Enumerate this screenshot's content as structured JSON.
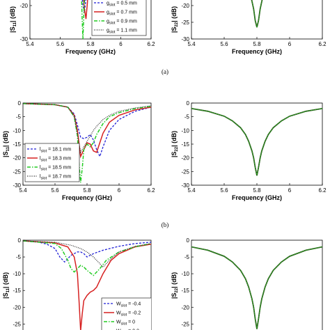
{
  "colors": {
    "blue": "#1f1fd6",
    "red": "#d62020",
    "green": "#22cc22",
    "black": "#222222",
    "olive": "#2f5a1e"
  },
  "panel_labels": [
    "(a)",
    "(b)"
  ],
  "chart_data": [
    {
      "id": "a-left",
      "type": "line",
      "xlabel": "Frequency (GHz)",
      "ylabel": "|S11| (dB)",
      "xlim": [
        5.4,
        6.2
      ],
      "ylim": [
        -30,
        -10
      ],
      "xticks": [
        "5.4",
        "5.6",
        "5.8",
        "6",
        "6.2"
      ],
      "yticks": [
        "-20",
        "-30"
      ],
      "legend": [
        "g_slot = 0.5 mm",
        "g_slot = 0.7 mm",
        "g_slot = 0.9 mm",
        "g_slot = 1.1 mm"
      ],
      "series": [
        {
          "name": "g_slot = 0.5 mm",
          "x": [
            5.72,
            5.735,
            5.75,
            5.76,
            5.77,
            5.78
          ],
          "y": [
            -10,
            -14,
            -20,
            -22,
            -18,
            -10
          ]
        },
        {
          "name": "g_slot = 0.7 mm",
          "x": [
            5.73,
            5.745,
            5.76,
            5.77,
            5.78,
            5.79
          ],
          "y": [
            -10,
            -14,
            -21,
            -24,
            -19,
            -10
          ]
        },
        {
          "name": "g_slot = 0.9 mm",
          "x": [
            5.735,
            5.74,
            5.745,
            5.75,
            5.755,
            5.76,
            5.765
          ],
          "y": [
            -10,
            -16,
            -24,
            -30,
            -24,
            -16,
            -10
          ]
        },
        {
          "name": "g_slot = 1.1 mm",
          "x": [
            5.74,
            5.75,
            5.76,
            5.77,
            5.78
          ],
          "y": [
            -10,
            -15,
            -19,
            -16,
            -10
          ]
        }
      ]
    },
    {
      "id": "a-right",
      "type": "line",
      "xlabel": "Frequency (GHz)",
      "ylabel": "|S22| (dB)",
      "xlim": [
        5.4,
        6.2
      ],
      "ylim": [
        -30,
        -10
      ],
      "xticks": [
        "5.4",
        "5.6",
        "5.8",
        "6",
        "6.2"
      ],
      "yticks": [
        "-20",
        "-25",
        "-30"
      ],
      "series": [
        {
          "name": "all",
          "x": [
            5.7,
            5.72,
            5.74,
            5.76,
            5.78,
            5.79,
            5.8,
            5.81,
            5.82,
            5.84,
            5.86,
            5.88,
            5.9
          ],
          "y": [
            -10,
            -11.5,
            -13.5,
            -16.5,
            -21,
            -24.5,
            -26.5,
            -24.5,
            -21,
            -16.5,
            -13.5,
            -11.5,
            -10
          ]
        }
      ]
    },
    {
      "id": "b-left",
      "type": "line",
      "xlabel": "Frequency (GHz)",
      "ylabel": "|S11| (dB)",
      "xlim": [
        5.4,
        6.2
      ],
      "ylim": [
        -30,
        0
      ],
      "xticks": [
        "5.4",
        "5.6",
        "5.8",
        "6",
        "6.2"
      ],
      "yticks": [
        "0",
        "-5",
        "-10",
        "-15",
        "-20",
        "-25",
        "-30"
      ],
      "legend": [
        "l_slot = 18.1 mm",
        "l_slot = 18.3 mm",
        "l_slot = 18.5 mm",
        "l_slot = 18.7 mm"
      ],
      "series": [
        {
          "name": "l_slot = 18.1 mm",
          "x": [
            5.4,
            5.6,
            5.68,
            5.72,
            5.74,
            5.76,
            5.78,
            5.8,
            5.82,
            5.84,
            5.86,
            5.88,
            5.9,
            5.94,
            6.0,
            6.1,
            6.2
          ],
          "y": [
            -0.2,
            -0.6,
            -1.5,
            -4,
            -8,
            -12.5,
            -13,
            -12.5,
            -11.5,
            -13.5,
            -17,
            -19.5,
            -16,
            -10,
            -6,
            -3,
            -1.5
          ]
        },
        {
          "name": "l_slot = 18.3 mm",
          "x": [
            5.4,
            5.6,
            5.68,
            5.72,
            5.74,
            5.76,
            5.78,
            5.8,
            5.82,
            5.84,
            5.86,
            5.88,
            5.9,
            5.94,
            6.0,
            6.1,
            6.2
          ],
          "y": [
            -0.2,
            -0.6,
            -1.5,
            -4.5,
            -10,
            -19.5,
            -17,
            -14.5,
            -15,
            -17.5,
            -18,
            -14.5,
            -11,
            -7,
            -4.5,
            -2.5,
            -1.5
          ]
        },
        {
          "name": "l_slot = 18.5 mm",
          "x": [
            5.4,
            5.6,
            5.68,
            5.72,
            5.74,
            5.75,
            5.76,
            5.77,
            5.78,
            5.8,
            5.82,
            5.84,
            5.86,
            5.9,
            5.94,
            6.0,
            6.1,
            6.2
          ],
          "y": [
            -0.2,
            -0.6,
            -1.5,
            -5,
            -12,
            -22,
            -29,
            -24,
            -17,
            -15,
            -16,
            -14.5,
            -11.5,
            -7.5,
            -5,
            -3.5,
            -2,
            -1.2
          ]
        },
        {
          "name": "l_slot = 18.7 mm",
          "x": [
            5.4,
            5.6,
            5.68,
            5.72,
            5.74,
            5.76,
            5.78,
            5.8,
            5.82,
            5.84,
            5.86,
            5.9,
            5.94,
            6.0,
            6.1,
            6.2
          ],
          "y": [
            -0.2,
            -0.6,
            -1.5,
            -5,
            -11.5,
            -18,
            -16,
            -14,
            -12,
            -10,
            -8.5,
            -6,
            -4.5,
            -3,
            -1.8,
            -1
          ]
        }
      ]
    },
    {
      "id": "b-right",
      "type": "line",
      "xlabel": "Frequency (GHz)",
      "ylabel": "|S22| (dB)",
      "xlim": [
        5.4,
        6.2
      ],
      "ylim": [
        -30,
        0
      ],
      "xticks": [
        "5.4",
        "5.6",
        "5.8",
        "6",
        "6.2"
      ],
      "yticks": [
        "0",
        "-5",
        "-10",
        "-15",
        "-20",
        "-25",
        "-30"
      ],
      "series": [
        {
          "name": "all",
          "x": [
            5.4,
            5.5,
            5.6,
            5.65,
            5.7,
            5.73,
            5.75,
            5.77,
            5.78,
            5.79,
            5.8,
            5.81,
            5.82,
            5.83,
            5.85,
            5.87,
            5.9,
            5.95,
            6.0,
            6.1,
            6.2
          ],
          "y": [
            -2,
            -3,
            -4.8,
            -6.5,
            -9,
            -11.5,
            -14,
            -17.5,
            -20,
            -23.5,
            -26.5,
            -23.5,
            -20,
            -17.5,
            -14,
            -11.5,
            -9,
            -6.5,
            -4.8,
            -3,
            -2
          ]
        }
      ]
    },
    {
      "id": "c-left",
      "type": "line",
      "xlabel": "",
      "ylabel": "|S11| (dB)",
      "xlim": [
        5.4,
        6.2
      ],
      "ylim": [
        -27,
        0
      ],
      "xticks": [],
      "yticks": [
        "0",
        "-5",
        "-10",
        "-15",
        "-20",
        "-25"
      ],
      "legend": [
        "W_slot = -0.4",
        "W_slot = -0.2",
        "W_slot = 0",
        "W_slot = 0.2"
      ],
      "series": [
        {
          "name": "W_slot = -0.4",
          "x": [
            5.4,
            5.5,
            5.55,
            5.6,
            5.63,
            5.66,
            5.68,
            5.7,
            5.72,
            5.74,
            5.76,
            5.78,
            5.8,
            5.84,
            5.9,
            6.0,
            6.1,
            6.2
          ],
          "y": [
            -0.2,
            -0.6,
            -1.2,
            -2.5,
            -5,
            -6.5,
            -5.5,
            -4.5,
            -4,
            -3.5,
            -3.5,
            -4,
            -5,
            -4,
            -3,
            -1.8,
            -1,
            -0.6
          ]
        },
        {
          "name": "W_slot = -0.2",
          "x": [
            5.4,
            5.6,
            5.68,
            5.72,
            5.74,
            5.75,
            5.76,
            5.77,
            5.78,
            5.8,
            5.82,
            5.84,
            5.86,
            5.9,
            5.95,
            6.0,
            6.1,
            6.2
          ],
          "y": [
            -0.2,
            -0.8,
            -2,
            -5,
            -10,
            -18,
            -27,
            -22,
            -18,
            -16.5,
            -15.5,
            -15,
            -14,
            -10,
            -6,
            -4,
            -2,
            -1.2
          ]
        },
        {
          "name": "W_slot = 0",
          "x": [
            5.4,
            5.6,
            5.64,
            5.68,
            5.7,
            5.72,
            5.74,
            5.76,
            5.78,
            5.8,
            5.84,
            5.88,
            5.92,
            6.0,
            6.1,
            6.2
          ],
          "y": [
            -0.2,
            -1,
            -2.5,
            -6,
            -8.5,
            -9.5,
            -8.5,
            -7.5,
            -8,
            -9,
            -10.5,
            -8.5,
            -6,
            -3.5,
            -2,
            -1
          ]
        },
        {
          "name": "W_slot = 0.2",
          "x": [
            5.4,
            5.6,
            5.7,
            5.76,
            5.8,
            5.84,
            5.88,
            5.9,
            5.92,
            5.95,
            6.0,
            6.1,
            6.2
          ],
          "y": [
            -0.2,
            -0.6,
            -1.5,
            -2.5,
            -3.5,
            -5,
            -7,
            -8,
            -7,
            -5.5,
            -3.5,
            -1.8,
            -1
          ]
        }
      ]
    },
    {
      "id": "c-right",
      "type": "line",
      "xlabel": "",
      "ylabel": "|S22| (dB)",
      "xlim": [
        5.4,
        6.2
      ],
      "ylim": [
        -27,
        0
      ],
      "xticks": [],
      "yticks": [
        "0",
        "-5",
        "-10",
        "-15",
        "-20",
        "-25"
      ],
      "series": [
        {
          "name": "all",
          "x": [
            5.4,
            5.5,
            5.6,
            5.65,
            5.7,
            5.73,
            5.75,
            5.77,
            5.78,
            5.79,
            5.8,
            5.81,
            5.82,
            5.83,
            5.85,
            5.87,
            5.9,
            5.95,
            6.0,
            6.1,
            6.2
          ],
          "y": [
            -2,
            -3,
            -4.8,
            -6.5,
            -9,
            -11.5,
            -14,
            -17.5,
            -20,
            -23.5,
            -26.5,
            -23.5,
            -20,
            -17.5,
            -14,
            -11.5,
            -9,
            -6.5,
            -4.8,
            -3,
            -2
          ]
        }
      ]
    }
  ]
}
